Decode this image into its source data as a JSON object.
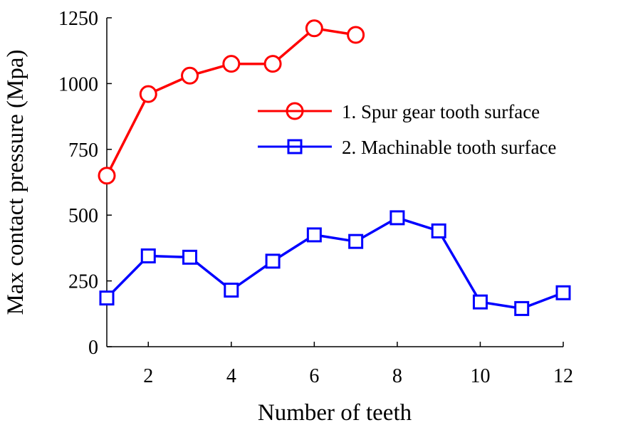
{
  "chart_data": {
    "type": "line",
    "title": "",
    "xlabel": "Number of teeth",
    "ylabel": "Max contact pressure (Mpa)",
    "xlim": [
      1,
      12
    ],
    "ylim": [
      0,
      1250
    ],
    "x_ticks": [
      "2",
      "4",
      "6",
      "8",
      "10",
      "12"
    ],
    "y_ticks": [
      "0",
      "250",
      "500",
      "750",
      "1000",
      "1250"
    ],
    "grid": false,
    "legend_placement": "upper-right",
    "series": [
      {
        "name": "1. Spur gear tooth surface",
        "color": "#ff0000",
        "marker": "circle",
        "x": [
          1,
          2,
          3,
          4,
          5,
          6,
          7
        ],
        "values": [
          650,
          960,
          1030,
          1075,
          1075,
          1210,
          1185
        ]
      },
      {
        "name": "2. Machinable tooth surface",
        "color": "#0000ff",
        "marker": "square",
        "x": [
          1,
          2,
          3,
          4,
          5,
          6,
          7,
          8,
          9,
          10,
          11,
          12
        ],
        "values": [
          185,
          345,
          340,
          215,
          325,
          425,
          400,
          490,
          440,
          170,
          145,
          205
        ]
      }
    ]
  }
}
